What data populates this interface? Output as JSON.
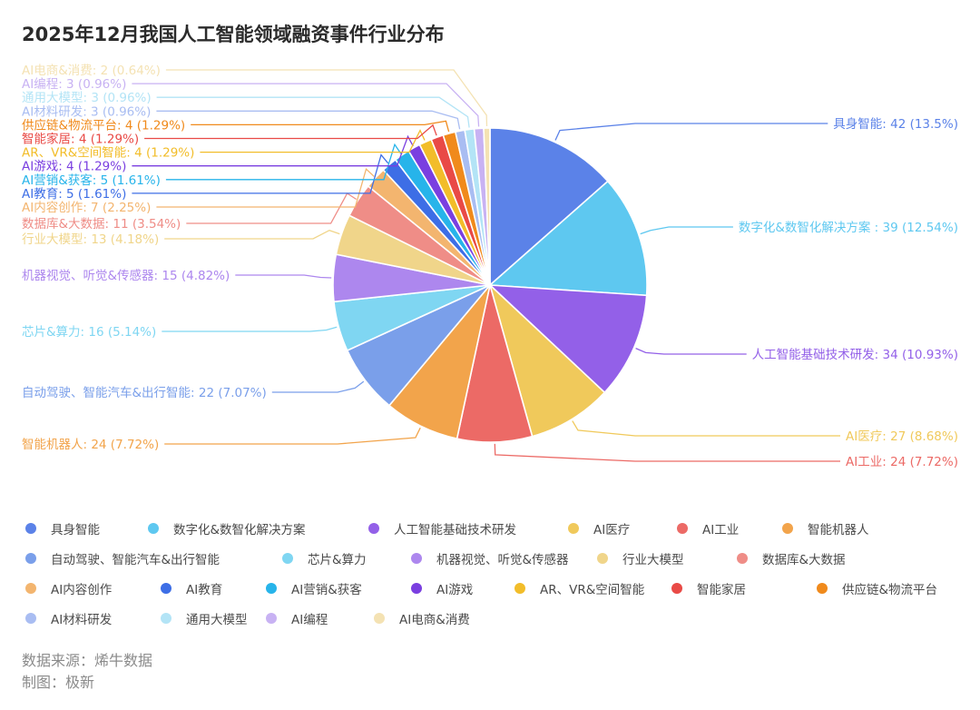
{
  "chart_data": {
    "type": "pie",
    "title": "2025年12月我国人工智能领域融资事件行业分布",
    "slices": [
      {
        "name": "具身智能",
        "value": 42,
        "label": "具身智能: 42 (13.5%)",
        "color": "#5b82e8"
      },
      {
        "name": "数字化&数智化解决方案",
        "value": 39,
        "label": "数字化&数智化解决方案 : 39 (12.54%)",
        "color": "#5ec8f0"
      },
      {
        "name": "人工智能基础技术研发",
        "value": 34,
        "label": "人工智能基础技术研发: 34 (10.93%)",
        "color": "#9360e8"
      },
      {
        "name": "AI医疗",
        "value": 27,
        "label": "AI医疗: 27 (8.68%)",
        "color": "#f0c95b"
      },
      {
        "name": "AI工业",
        "value": 24,
        "label": "AI工业: 24 (7.72%)",
        "color": "#ec6a66"
      },
      {
        "name": "智能机器人",
        "value": 24,
        "label": "智能机器人: 24 (7.72%)",
        "color": "#f2a44b"
      },
      {
        "name": "自动驾驶、智能汽车&出行智能",
        "value": 22,
        "label": "自动驾驶、智能汽车&出行智能: 22 (7.07%)",
        "color": "#7a9fea"
      },
      {
        "name": "芯片&算力",
        "value": 16,
        "label": "芯片&算力: 16 (5.14%)",
        "color": "#7fd6f2"
      },
      {
        "name": "机器视觉、听觉&传感器",
        "value": 15,
        "label": "机器视觉、听觉&传感器: 15 (4.82%)",
        "color": "#ad87ee"
      },
      {
        "name": "行业大模型",
        "value": 13,
        "label": "行业大模型: 13 (4.18%)",
        "color": "#f0d58a"
      },
      {
        "name": "数据库&大数据",
        "value": 11,
        "label": "数据库&大数据: 11 (3.54%)",
        "color": "#ef8d87"
      },
      {
        "name": "AI内容创作",
        "value": 7,
        "label": "AI内容创作: 7 (2.25%)",
        "color": "#f3b56f"
      },
      {
        "name": "AI教育",
        "value": 5,
        "label": "AI教育: 5 (1.61%)",
        "color": "#3d6ee6"
      },
      {
        "name": "AI营销&获客",
        "value": 5,
        "label": "AI营销&获客: 5 (1.61%)",
        "color": "#27b4ea"
      },
      {
        "name": "AI游戏",
        "value": 4,
        "label": "AI游戏: 4 (1.29%)",
        "color": "#7a3fe0"
      },
      {
        "name": "AR、VR&空间智能",
        "value": 4,
        "label": "AR、VR&空间智能: 4 (1.29%)",
        "color": "#f2bd2a"
      },
      {
        "name": "智能家居",
        "value": 4,
        "label": "智能家居: 4 (1.29%)",
        "color": "#e94a46"
      },
      {
        "name": "供应链&物流平台",
        "value": 4,
        "label": "供应链&物流平台: 4 (1.29%)",
        "color": "#f08a1c"
      },
      {
        "name": "AI材料研发",
        "value": 3,
        "label": "AI材料研发: 3 (0.96%)",
        "color": "#a9bdf2"
      },
      {
        "name": "通用大模型",
        "value": 3,
        "label": "通用大模型: 3 (0.96%)",
        "color": "#b3e4f6"
      },
      {
        "name": "AI编程",
        "value": 3,
        "label": "AI编程: 3 (0.96%)",
        "color": "#c8b2f3"
      },
      {
        "name": "AI电商&消费",
        "value": 2,
        "label": "AI电商&消费: 2 (0.64%)",
        "color": "#f4e2b3"
      }
    ],
    "legend_position": "bottom"
  },
  "footer": {
    "source": "数据来源：烯牛数据",
    "author": "制图：极新"
  }
}
